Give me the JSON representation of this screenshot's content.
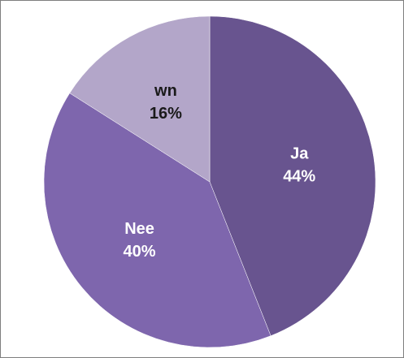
{
  "chart_data": {
    "type": "pie",
    "categories": [
      "Ja",
      "Nee",
      "wn"
    ],
    "values": [
      44,
      40,
      16
    ],
    "value_labels": [
      "44%",
      "40%",
      "16%"
    ],
    "colors": [
      "#68548f",
      "#7e66ad",
      "#b3a6c9"
    ],
    "label_colors": [
      "#ffffff",
      "#ffffff",
      "#1a1a1a"
    ]
  }
}
